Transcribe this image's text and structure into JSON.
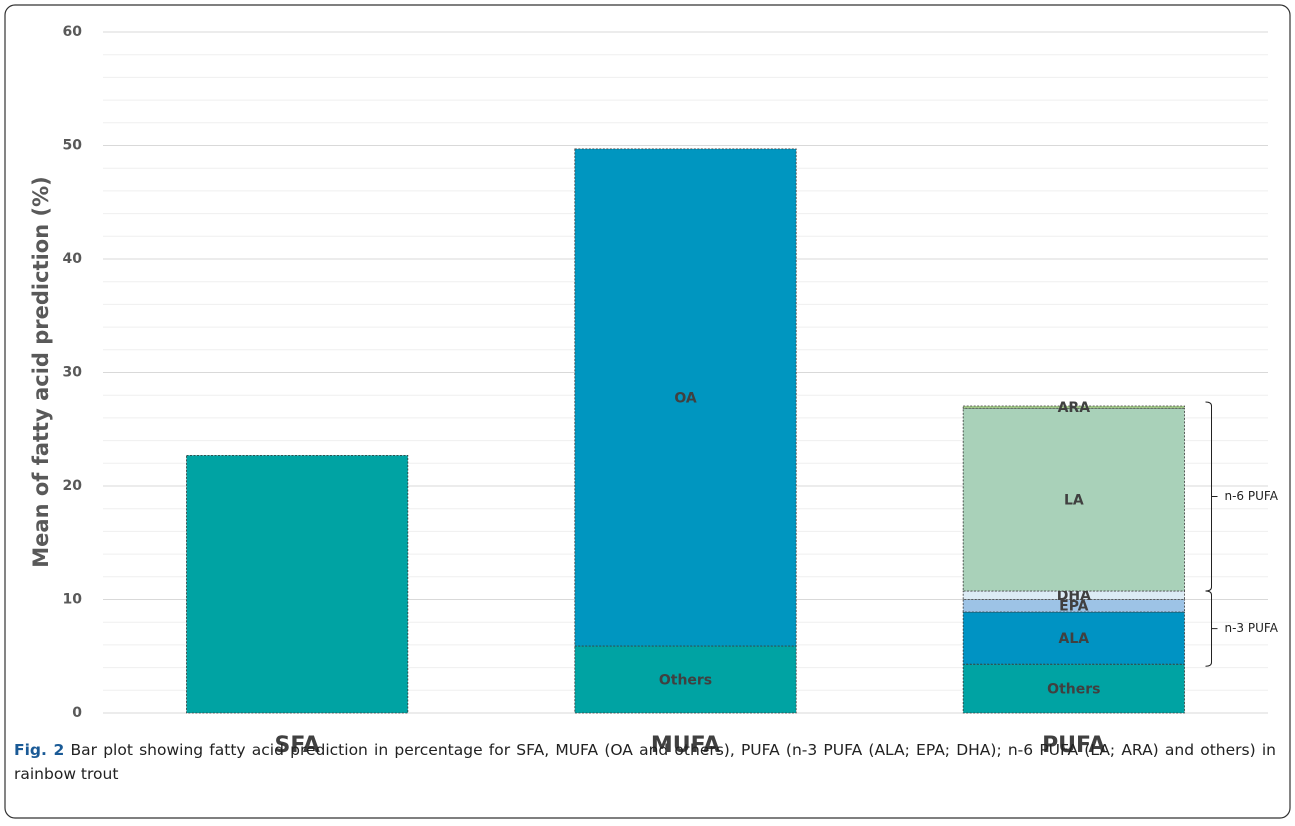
{
  "chart_data": {
    "type": "stacked_bar",
    "y_label": "Mean of fatty acid prediction (%)",
    "categories": [
      "SFA",
      "MUFA",
      "PUFA"
    ],
    "series": [
      {
        "color": "#00a3a3",
        "values": [
          22.7,
          null,
          null
        ]
      },
      {
        "name": "Others",
        "color": "#00a3a3",
        "values": [
          null,
          5.9,
          4.3
        ]
      },
      {
        "name": "OA",
        "color": "#0096c0",
        "values": [
          null,
          43.8,
          null
        ]
      },
      {
        "name": "ALA",
        "color": "#0093c3",
        "values": [
          null,
          null,
          4.6
        ]
      },
      {
        "name": "EPA",
        "color": "#9dc3e6",
        "values": [
          null,
          null,
          1.1
        ]
      },
      {
        "name": "DHA",
        "color": "#dcebf5",
        "values": [
          null,
          null,
          0.75
        ]
      },
      {
        "name": "LA",
        "color": "#a9d1b9",
        "values": [
          null,
          null,
          16.1
        ]
      },
      {
        "name": "ARA",
        "color": "#a9d18e",
        "values": [
          null,
          null,
          0.2
        ]
      }
    ],
    "brackets": [
      {
        "label": "n-3 PUFA",
        "series": [
          3,
          4,
          5
        ]
      },
      {
        "label": "n-6 PUFA",
        "series": [
          6,
          7
        ]
      }
    ],
    "ylim": [
      0,
      60
    ],
    "yticks": [
      0,
      10,
      20,
      30,
      40,
      50,
      60
    ],
    "minor_yticks": [
      2,
      4,
      6,
      8,
      12,
      14,
      16,
      18,
      22,
      24,
      26,
      28,
      32,
      34,
      36,
      38,
      42,
      44,
      46,
      48,
      52,
      54,
      56,
      58
    ],
    "grid": true
  },
  "caption": {
    "label": "Fig. 2",
    "text": "Bar plot showing fatty acid prediction in percentage for SFA, MUFA (OA and others), PUFA (n-3 PUFA (ALA; EPA; DHA); n-6 PUFA (LA; ARA) and others) in rainbow trout"
  }
}
